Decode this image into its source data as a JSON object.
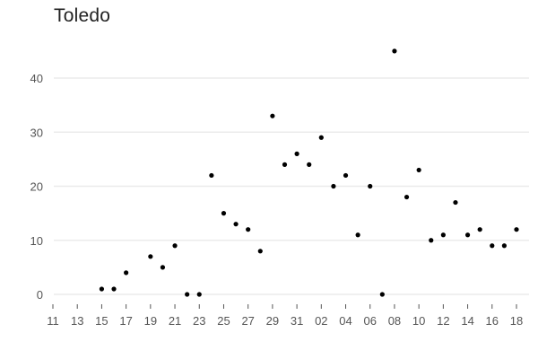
{
  "chart_data": {
    "type": "scatter",
    "title": "Toledo",
    "xlabel": "",
    "ylabel": "",
    "x_ticks": [
      "11",
      "13",
      "15",
      "17",
      "19",
      "21",
      "23",
      "25",
      "27",
      "29",
      "31",
      "02",
      "04",
      "06",
      "08",
      "10",
      "12",
      "14",
      "16",
      "18"
    ],
    "y_ticks": [
      0,
      10,
      20,
      30,
      40
    ],
    "ylim": [
      -2,
      48
    ],
    "grid": true,
    "series": [
      {
        "points": [
          {
            "x": "15",
            "y": 1
          },
          {
            "x": "16",
            "y": 1
          },
          {
            "x": "17",
            "y": 4
          },
          {
            "x": "19",
            "y": 7
          },
          {
            "x": "20",
            "y": 5
          },
          {
            "x": "21",
            "y": 9
          },
          {
            "x": "22",
            "y": 0
          },
          {
            "x": "23",
            "y": 0
          },
          {
            "x": "24",
            "y": 22
          },
          {
            "x": "25",
            "y": 15
          },
          {
            "x": "26",
            "y": 13
          },
          {
            "x": "27",
            "y": 12
          },
          {
            "x": "28",
            "y": 8
          },
          {
            "x": "29",
            "y": 33
          },
          {
            "x": "30",
            "y": 24
          },
          {
            "x": "31",
            "y": 26
          },
          {
            "x": "01",
            "y": 24
          },
          {
            "x": "02",
            "y": 29
          },
          {
            "x": "03",
            "y": 20
          },
          {
            "x": "04",
            "y": 22
          },
          {
            "x": "05",
            "y": 11
          },
          {
            "x": "06",
            "y": 20
          },
          {
            "x": "07",
            "y": 0
          },
          {
            "x": "08",
            "y": 45
          },
          {
            "x": "09",
            "y": 18
          },
          {
            "x": "10",
            "y": 23
          },
          {
            "x": "11",
            "y": 10
          },
          {
            "x": "12",
            "y": 11
          },
          {
            "x": "13",
            "y": 17
          },
          {
            "x": "14",
            "y": 11
          },
          {
            "x": "15",
            "y": 12
          },
          {
            "x": "16",
            "y": 9
          },
          {
            "x": "17",
            "y": 9
          },
          {
            "x": "18",
            "y": 12
          }
        ]
      }
    ]
  }
}
